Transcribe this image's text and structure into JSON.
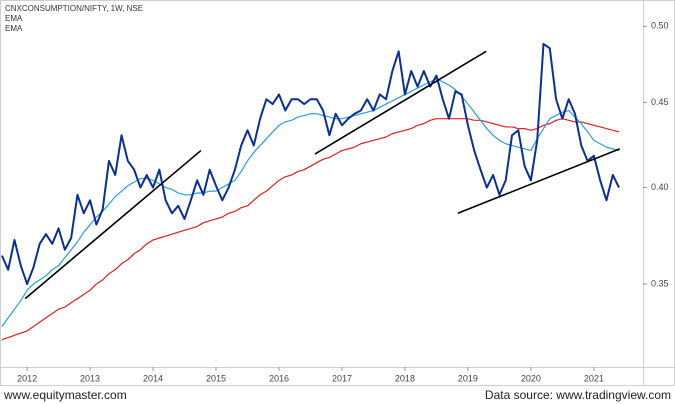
{
  "chart_data": {
    "type": "line",
    "title": "CNXCONSUMPTION/NIFTY, 1W, NSE",
    "source_left": "www.equitymaster.com",
    "source_right": "Data source: www.tradingview.com",
    "log_scale": true,
    "grid": false,
    "xlim": [
      2011.57,
      2021.78
    ],
    "xticks": [
      2012,
      2013,
      2014,
      2015,
      2016,
      2017,
      2018,
      2019,
      2020,
      2021
    ],
    "ylim": [
      0.312,
      0.515
    ],
    "yticks": [
      {
        "value": 0.35,
        "label": "0.35"
      },
      {
        "value": 0.4,
        "label": "0.40"
      },
      0.45,
      {
        "value": 0.5,
        "label": "0.50"
      }
    ],
    "x": [
      2011.6,
      2011.7,
      2011.8,
      2011.9,
      2012.0,
      2012.1,
      2012.2,
      2012.3,
      2012.4,
      2012.5,
      2012.6,
      2012.7,
      2012.8,
      2012.9,
      2013.0,
      2013.1,
      2013.2,
      2013.3,
      2013.4,
      2013.5,
      2013.6,
      2013.7,
      2013.8,
      2013.9,
      2014.0,
      2014.1,
      2014.2,
      2014.3,
      2014.4,
      2014.5,
      2014.6,
      2014.7,
      2014.8,
      2014.9,
      2015.0,
      2015.1,
      2015.2,
      2015.3,
      2015.4,
      2015.5,
      2015.6,
      2015.7,
      2015.8,
      2015.9,
      2016.0,
      2016.1,
      2016.2,
      2016.3,
      2016.4,
      2016.5,
      2016.6,
      2016.7,
      2016.8,
      2016.9,
      2017.0,
      2017.1,
      2017.2,
      2017.3,
      2017.4,
      2017.5,
      2017.6,
      2017.7,
      2017.8,
      2017.9,
      2018.0,
      2018.1,
      2018.2,
      2018.3,
      2018.4,
      2018.5,
      2018.6,
      2018.7,
      2018.8,
      2018.9,
      2019.0,
      2019.1,
      2019.2,
      2019.3,
      2019.4,
      2019.5,
      2019.6,
      2019.7,
      2019.8,
      2019.9,
      2020.0,
      2020.1,
      2020.2,
      2020.3,
      2020.4,
      2020.5,
      2020.6,
      2020.7,
      2020.8,
      2020.9,
      2021.0,
      2021.1,
      2021.2,
      2021.3,
      2021.4
    ],
    "series": [
      {
        "name": "CNXCONSUMPTION/NIFTY",
        "color": "#0d2f8f",
        "width": 2,
        "values": [
          0.364,
          0.357,
          0.372,
          0.359,
          0.35,
          0.358,
          0.37,
          0.375,
          0.37,
          0.378,
          0.367,
          0.373,
          0.396,
          0.386,
          0.393,
          0.38,
          0.388,
          0.415,
          0.407,
          0.43,
          0.415,
          0.41,
          0.4,
          0.407,
          0.4,
          0.41,
          0.393,
          0.386,
          0.39,
          0.383,
          0.393,
          0.404,
          0.396,
          0.41,
          0.401,
          0.393,
          0.4,
          0.41,
          0.424,
          0.433,
          0.424,
          0.44,
          0.452,
          0.449,
          0.455,
          0.445,
          0.452,
          0.452,
          0.449,
          0.452,
          0.452,
          0.445,
          0.43,
          0.443,
          0.436,
          0.44,
          0.443,
          0.445,
          0.452,
          0.445,
          0.455,
          0.452,
          0.47,
          0.483,
          0.455,
          0.47,
          0.46,
          0.47,
          0.46,
          0.467,
          0.452,
          0.44,
          0.457,
          0.455,
          0.436,
          0.421,
          0.41,
          0.4,
          0.407,
          0.396,
          0.404,
          0.43,
          0.433,
          0.412,
          0.404,
          0.427,
          0.488,
          0.485,
          0.452,
          0.44,
          0.452,
          0.443,
          0.424,
          0.415,
          0.418,
          0.404,
          0.393,
          0.407,
          0.4
        ]
      },
      {
        "name": "EMA",
        "color": "#2a9fd8",
        "width": 1.2,
        "values": [
          0.33,
          0.334,
          0.338,
          0.342,
          0.347,
          0.35,
          0.352,
          0.354,
          0.357,
          0.359,
          0.363,
          0.367,
          0.371,
          0.376,
          0.38,
          0.384,
          0.387,
          0.391,
          0.395,
          0.398,
          0.401,
          0.403,
          0.405,
          0.405,
          0.404,
          0.402,
          0.4,
          0.399,
          0.397,
          0.396,
          0.396,
          0.397,
          0.397,
          0.398,
          0.398,
          0.4,
          0.402,
          0.404,
          0.409,
          0.415,
          0.42,
          0.424,
          0.428,
          0.432,
          0.436,
          0.438,
          0.439,
          0.441,
          0.442,
          0.443,
          0.443,
          0.442,
          0.441,
          0.44,
          0.44,
          0.441,
          0.442,
          0.443,
          0.444,
          0.445,
          0.447,
          0.449,
          0.451,
          0.453,
          0.455,
          0.457,
          0.459,
          0.461,
          0.463,
          0.465,
          0.463,
          0.461,
          0.458,
          0.454,
          0.449,
          0.444,
          0.439,
          0.434,
          0.43,
          0.427,
          0.425,
          0.424,
          0.423,
          0.422,
          0.421,
          0.428,
          0.434,
          0.44,
          0.442,
          0.444,
          0.445,
          0.441,
          0.437,
          0.432,
          0.427,
          0.425,
          0.423,
          0.422,
          0.421
        ]
      },
      {
        "name": "EMA",
        "color": "#e0201c",
        "width": 1.2,
        "values": [
          0.324,
          0.325,
          0.326,
          0.327,
          0.328,
          0.33,
          0.332,
          0.334,
          0.336,
          0.338,
          0.339,
          0.341,
          0.343,
          0.345,
          0.347,
          0.35,
          0.352,
          0.355,
          0.357,
          0.36,
          0.362,
          0.365,
          0.367,
          0.37,
          0.372,
          0.373,
          0.374,
          0.375,
          0.376,
          0.377,
          0.378,
          0.379,
          0.381,
          0.382,
          0.383,
          0.384,
          0.386,
          0.387,
          0.389,
          0.39,
          0.393,
          0.396,
          0.398,
          0.401,
          0.404,
          0.406,
          0.407,
          0.409,
          0.41,
          0.412,
          0.414,
          0.416,
          0.417,
          0.419,
          0.421,
          0.422,
          0.423,
          0.425,
          0.426,
          0.427,
          0.428,
          0.429,
          0.431,
          0.432,
          0.433,
          0.434,
          0.436,
          0.437,
          0.439,
          0.44,
          0.44,
          0.44,
          0.44,
          0.44,
          0.44,
          0.439,
          0.439,
          0.438,
          0.437,
          0.436,
          0.435,
          0.435,
          0.434,
          0.434,
          0.433,
          0.434,
          0.436,
          0.437,
          0.439,
          0.44,
          0.439,
          0.438,
          0.438,
          0.437,
          0.436,
          0.435,
          0.434,
          0.433,
          0.432
        ]
      }
    ],
    "trendlines": [
      {
        "color": "#000000",
        "x": [
          2011.97,
          2014.76
        ],
        "values": [
          0.343,
          0.421
        ]
      },
      {
        "color": "#000000",
        "x": [
          2016.57,
          2019.29
        ],
        "values": [
          0.419,
          0.483
        ]
      },
      {
        "color": "#000000",
        "x": [
          2018.84,
          2021.41
        ],
        "values": [
          0.386,
          0.422
        ]
      }
    ]
  }
}
